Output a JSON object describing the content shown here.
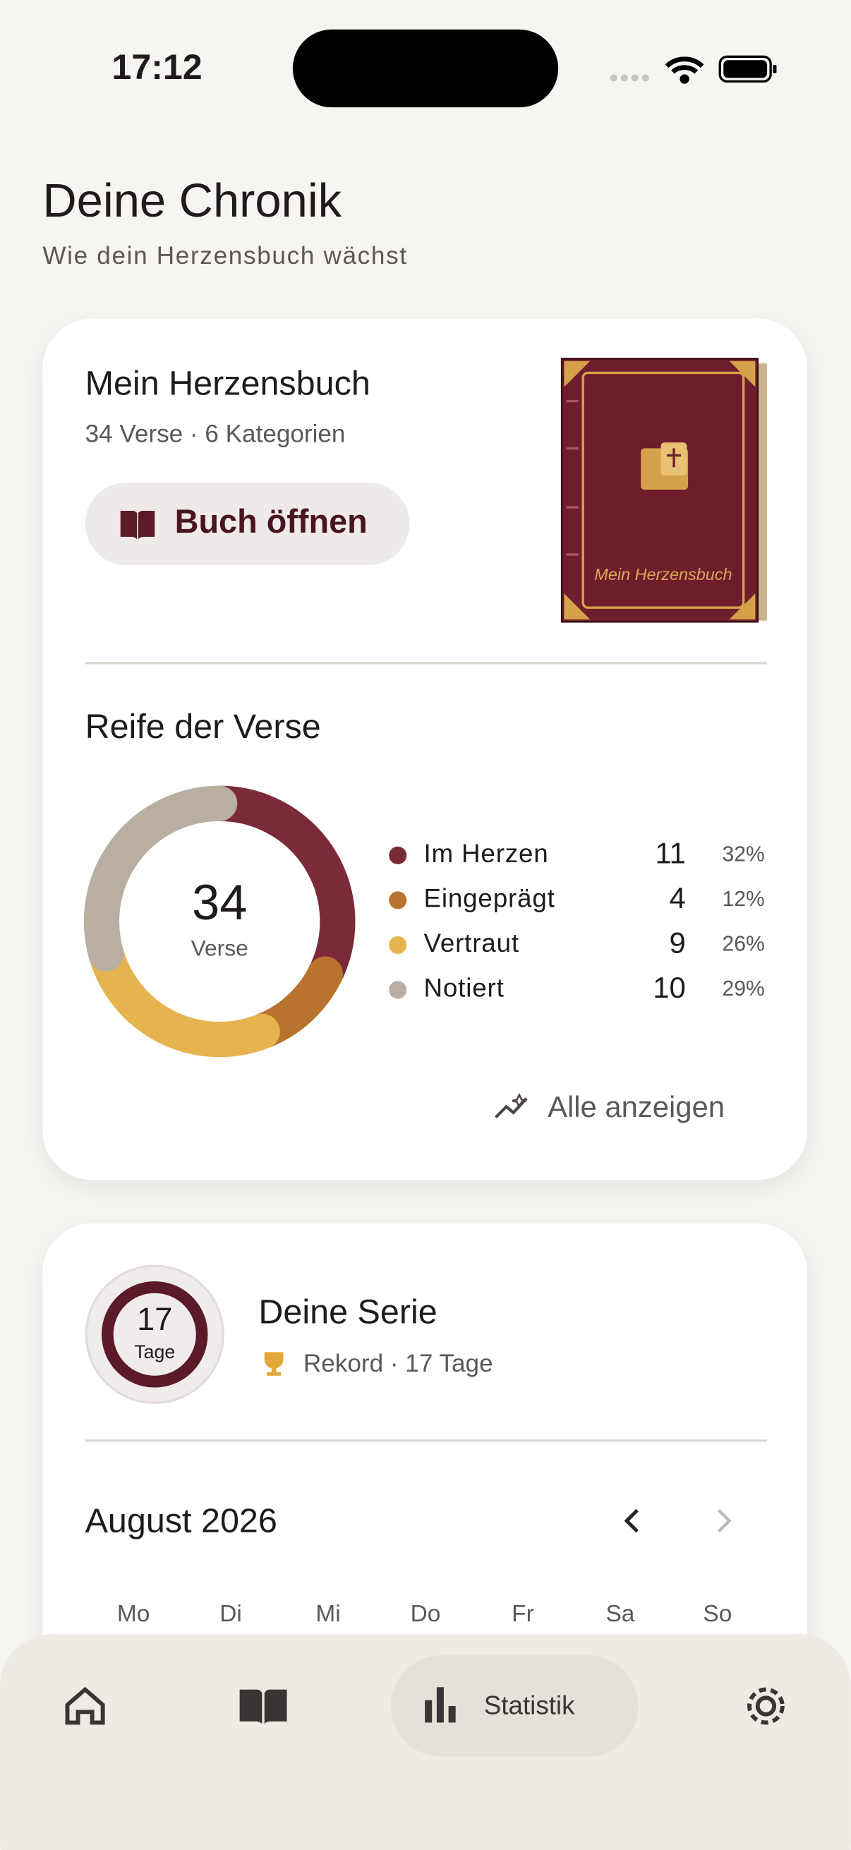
{
  "status_bar": {
    "time": "17:12"
  },
  "header": {
    "title": "Deine Chronik",
    "subtitle": "Wie dein Herzensbuch wächst"
  },
  "book_card": {
    "title": "Mein Herzensbuch",
    "meta": "34 Verse · 6 Kategorien",
    "button": "Buch öffnen",
    "cover_title": "Mein Herzensbuch"
  },
  "maturity": {
    "title": "Reife der Verse",
    "total": 34,
    "total_label": "Verse",
    "segments": [
      {
        "name": "Im Herzen",
        "color": "#7b2a3a",
        "value": 11,
        "percent": "32%"
      },
      {
        "name": "Eingeprägt",
        "color": "#b8732e",
        "value": 4,
        "percent": "12%"
      },
      {
        "name": "Vertraut",
        "color": "#e6b44f",
        "value": 9,
        "percent": "26%"
      },
      {
        "name": "Notiert",
        "color": "#b8afa2",
        "value": 10,
        "percent": "29%"
      }
    ],
    "link": "Alle anzeigen"
  },
  "streak": {
    "days": 17,
    "days_label": "Tage",
    "title": "Deine Serie",
    "record": "Rekord · 17 Tage"
  },
  "calendar": {
    "month": "August 2026",
    "weekdays": [
      "Mo",
      "Di",
      "Mi",
      "Do",
      "Fr",
      "Sa",
      "So"
    ]
  },
  "nav": {
    "active_label": "Statistik"
  }
}
